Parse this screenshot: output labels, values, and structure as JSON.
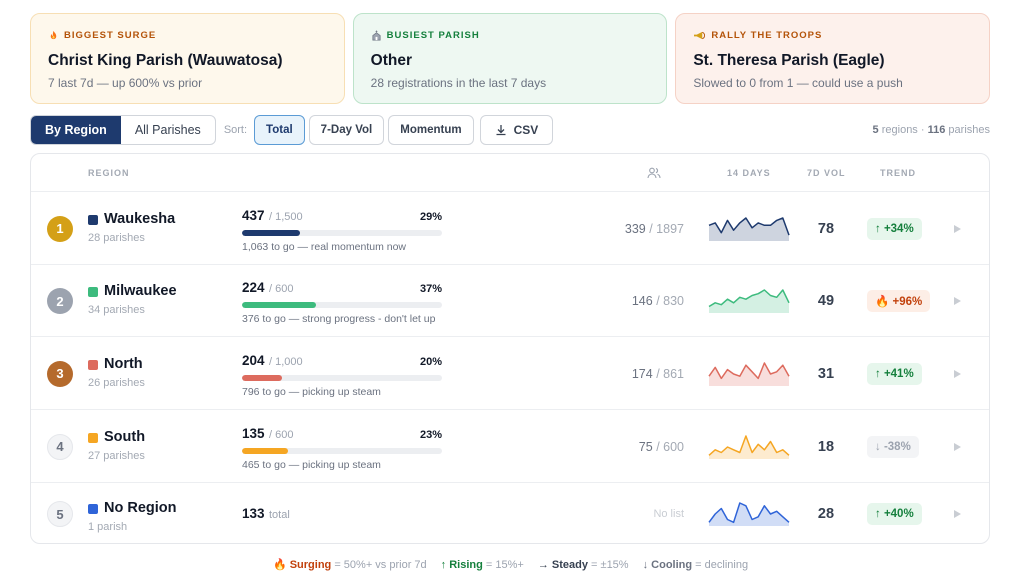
{
  "cards": [
    {
      "label": "BIGGEST SURGE",
      "icon": "fire-icon",
      "title": "Christ King Parish (Wauwatosa)",
      "subtitle": "7 last 7d — up 600% vs prior"
    },
    {
      "label": "BUSIEST PARISH",
      "icon": "church-icon",
      "title": "Other",
      "subtitle": "28 registrations in the last 7 days"
    },
    {
      "label": "RALLY THE TROOPS",
      "icon": "bugle-icon",
      "title": "St. Theresa Parish (Eagle)",
      "subtitle": "Slowed to 0 from 1 — could use a push"
    }
  ],
  "toolbar": {
    "view_tabs": [
      "By Region",
      "All Parishes"
    ],
    "active_view": "By Region",
    "sort_label": "Sort:",
    "sort_options": [
      "Total",
      "7-Day Vol",
      "Momentum"
    ],
    "active_sort": "Total",
    "csv_label": "CSV",
    "regions_count": "5",
    "regions_word": "regions",
    "sep": "·",
    "parishes_count": "116",
    "parishes_word": "parishes"
  },
  "table": {
    "headers": {
      "region": "REGION",
      "days": "14 DAYS",
      "vol": "7D VOL",
      "trend": "TREND"
    },
    "rows": [
      {
        "rank": "1",
        "name": "Waukesha",
        "sub": "28 parishes",
        "color": "#1e3a6e",
        "rank_color": "#d4a017",
        "count": "437",
        "goal": "/ 1,500",
        "pct": "29%",
        "pct_value": 29,
        "note": "1,063 to go — real momentum now",
        "fraction_a": "339",
        "fraction_b": "/ 1897",
        "vol": "78",
        "trend": "↑ +34%",
        "trend_type": "up",
        "spark": [
          6,
          7,
          3,
          8,
          4,
          7,
          9,
          5,
          7,
          6,
          6,
          8,
          9,
          2
        ]
      },
      {
        "rank": "2",
        "name": "Milwaukee",
        "sub": "34 parishes",
        "color": "#3dbb7e",
        "rank_color": "#9ca3af",
        "count": "224",
        "goal": "/ 600",
        "pct": "37%",
        "pct_value": 37,
        "note": "376 to go — strong progress - don't let up",
        "fraction_a": "146",
        "fraction_b": "/ 830",
        "vol": "49",
        "trend": "🔥 +96%",
        "trend_type": "fire",
        "spark": [
          3,
          5,
          4,
          7,
          5,
          8,
          7,
          9,
          10,
          12,
          9,
          8,
          12,
          5
        ]
      },
      {
        "rank": "3",
        "name": "North",
        "sub": "26 parishes",
        "color": "#dd6b5e",
        "rank_color": "#b56a2c",
        "count": "204",
        "goal": "/ 1,000",
        "pct": "20%",
        "pct_value": 20,
        "note": "796 to go — picking up steam",
        "fraction_a": "174",
        "fraction_b": "/ 861",
        "vol": "31",
        "trend": "↑ +41%",
        "trend_type": "up",
        "spark": [
          4,
          8,
          3,
          7,
          5,
          4,
          9,
          6,
          3,
          10,
          5,
          6,
          9,
          4
        ]
      },
      {
        "rank": "4",
        "name": "South",
        "sub": "27 parishes",
        "color": "#f5a623",
        "rank_color": "none",
        "count": "135",
        "goal": "/ 600",
        "pct": "23%",
        "pct_value": 23,
        "note": "465 to go — picking up steam",
        "fraction_a": "75",
        "fraction_b": "/ 600",
        "vol": "18",
        "trend": "↓ -38%",
        "trend_type": "down",
        "spark": [
          1,
          3,
          2,
          4,
          3,
          2,
          8,
          2,
          5,
          3,
          6,
          2,
          3,
          1
        ]
      },
      {
        "rank": "5",
        "name": "No Region",
        "sub": "1 parish",
        "color": "#2f64d8",
        "rank_color": "none",
        "count": "133",
        "goal": "total",
        "pct": "",
        "note": "",
        "fraction_a": "No list",
        "fraction_b": "",
        "vol": "28",
        "trend": "↑ +40%",
        "trend_type": "up",
        "spark": [
          1,
          4,
          6,
          2,
          1,
          8,
          7,
          2,
          3,
          7,
          4,
          5,
          3,
          1
        ]
      }
    ]
  },
  "legend": [
    {
      "icon": "🔥",
      "name": "Surging",
      "desc": "= 50%+ vs prior 7d",
      "color": "#c2410c"
    },
    {
      "icon": "↑",
      "name": "Rising",
      "desc": "= 15%+",
      "color": "#15803d"
    },
    {
      "icon": "→",
      "name": "Steady",
      "desc": "= ±15%",
      "color": "#374151"
    },
    {
      "icon": "↓",
      "name": "Cooling",
      "desc": "= declining",
      "color": "#6b7280"
    }
  ]
}
